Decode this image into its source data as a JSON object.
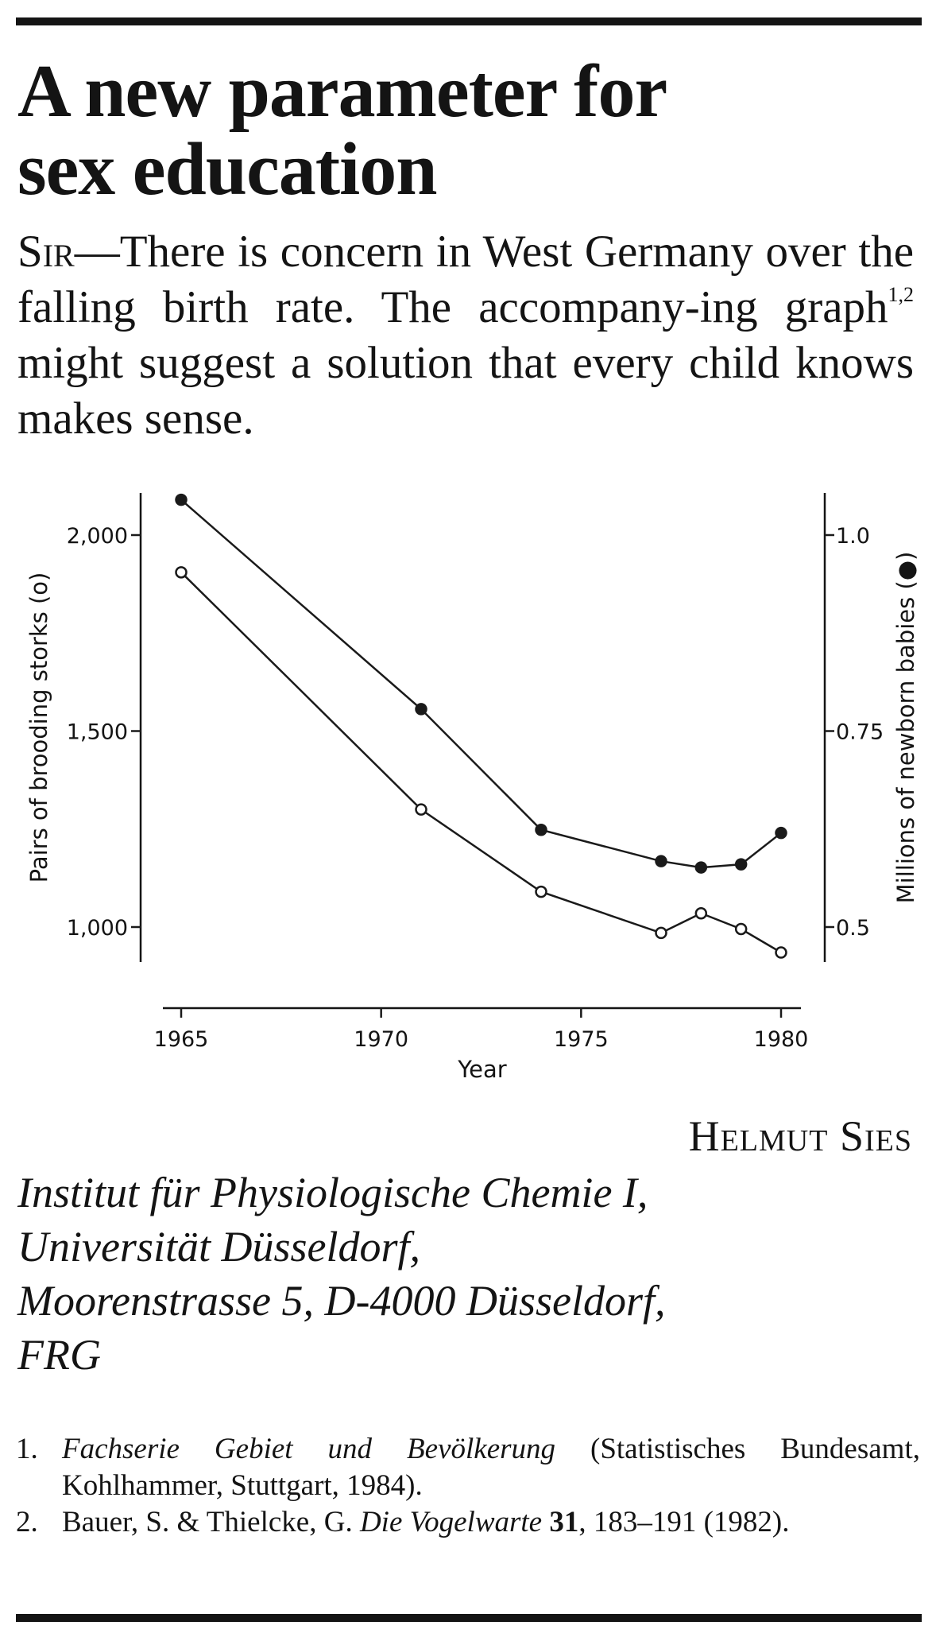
{
  "article": {
    "title_line1": "A new parameter for",
    "title_line2": "sex education",
    "salutation": "Sir",
    "body_before_sup": "—There is concern in West Germany over the falling birth rate. The accompany-ing graph",
    "body_sup": "1,2",
    "body_after_sup": " might suggest a solution that every child knows makes sense."
  },
  "chart_data": {
    "type": "line",
    "xlabel": "Year",
    "ylabel_left": "Pairs of brooding storks (o)",
    "ylabel_right": "Millions of newborn babies (●)",
    "x_ticks": [
      1965,
      1970,
      1975,
      1980
    ],
    "x_tick_labels": [
      "1965",
      "1970",
      "1975",
      "1980"
    ],
    "y_left_ticks": [
      1000,
      1500,
      2000
    ],
    "y_left_tick_labels": [
      "1,000",
      "1,500",
      "2,000"
    ],
    "y_right_ticks": [
      0.5,
      0.75,
      1.0
    ],
    "y_right_tick_labels": [
      "0.5",
      "0.75",
      "1.0"
    ],
    "xlim": [
      1965,
      1980
    ],
    "ylim_left": [
      1000,
      2000
    ],
    "ylim_right": [
      0.5,
      1.0
    ],
    "series": [
      {
        "name": "Millions of newborn babies",
        "marker": "filled",
        "axis": "right",
        "x": [
          1965,
          1971,
          1974,
          1977,
          1978,
          1979,
          1980
        ],
        "values": [
          1.045,
          0.778,
          0.624,
          0.584,
          0.576,
          0.58,
          0.62
        ]
      },
      {
        "name": "Pairs of brooding storks",
        "marker": "open",
        "axis": "left",
        "x": [
          1965,
          1971,
          1974,
          1977,
          1978,
          1979,
          1980
        ],
        "values": [
          1905,
          1300,
          1090,
          985,
          1035,
          995,
          935
        ]
      }
    ],
    "grid": false,
    "line_color": "#1a1a1a"
  },
  "signature": {
    "author": "Helmut Sies",
    "address_lines": [
      "Institut für Physiologische Chemie I,",
      "Universität Düsseldorf,",
      "Moorenstrasse 5, D-4000 Düsseldorf,",
      "FRG"
    ]
  },
  "references": [
    {
      "number": "1.",
      "italic": "Fachserie Gebiet und Bevölkerung",
      "rest": " (Statistisches Bundesamt, Kohlhammer, Stuttgart, 1984)."
    },
    {
      "number": "2.",
      "authors": "Bauer, S. & Thielcke, G. ",
      "journal": "Die Vogelwarte",
      "volume_sep": " ",
      "volume": "31",
      "pages": ", 183–191 (1982)."
    }
  ]
}
